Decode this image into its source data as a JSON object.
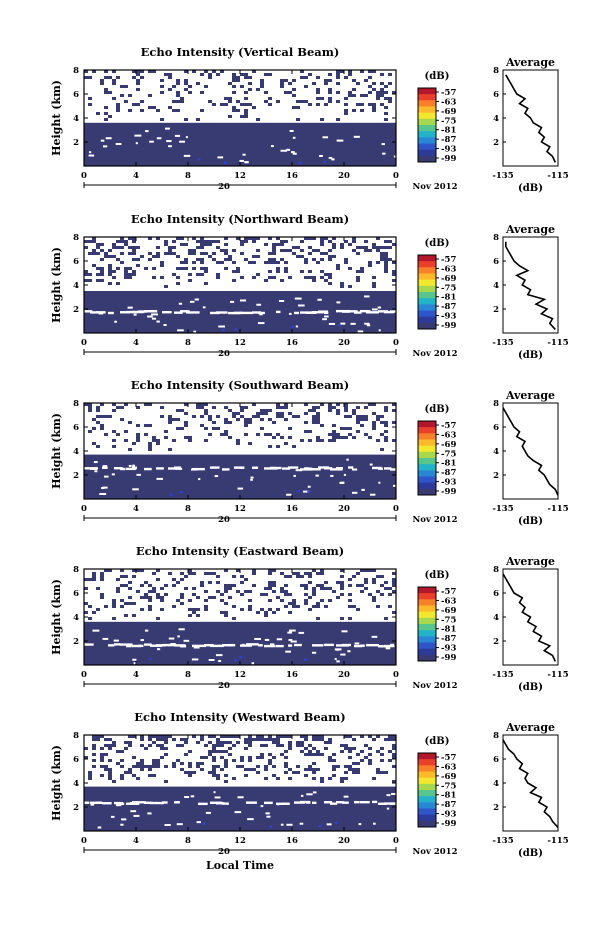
{
  "figure": {
    "xlabel": "Local Time",
    "date_label": "Nov 2012",
    "day_label": "20",
    "colorbar": {
      "unit": "(dB)",
      "ticks": [
        "-57",
        "-63",
        "-69",
        "-75",
        "-81",
        "-87",
        "-93",
        "-99"
      ],
      "colors": [
        "#b2182b",
        "#e8412b",
        "#f7812b",
        "#fbb92b",
        "#f2e830",
        "#a6d84f",
        "#57c58c",
        "#23b3c8",
        "#2a87d6",
        "#2f56c8",
        "#2e3a9a",
        "#383a72"
      ]
    },
    "avg_title": "Average",
    "avg_xlabel": "(dB)"
  },
  "chart_data": [
    {
      "type": "heatmap",
      "title": "Echo Intensity (Vertical Beam)",
      "xlabel": "",
      "ylabel": "Height (km)",
      "xlim": [
        0,
        24
      ],
      "ylim": [
        0,
        8
      ],
      "xticks": [
        "0",
        "4",
        "8",
        "12",
        "16",
        "20",
        "0"
      ],
      "yticks": [
        "2",
        "4",
        "6",
        "8"
      ],
      "clim": [
        -99,
        -57
      ],
      "dense_layer_top_km": 3.6,
      "gaps_km": [],
      "upper_echo_fraction": 0.25,
      "average_profile": {
        "xlim": [
          -135,
          -115
        ],
        "xticks": [
          "-135",
          "-115"
        ],
        "yticks": [
          "2",
          "4",
          "6",
          "8"
        ],
        "heights_km": [
          0.3,
          0.8,
          1.2,
          1.6,
          2.0,
          2.4,
          2.8,
          3.2,
          3.6,
          4.0,
          4.4,
          4.8,
          5.2,
          5.6,
          6.0,
          6.4,
          6.8,
          7.2,
          7.6
        ],
        "values_db": [
          -116,
          -117,
          -119,
          -118,
          -121,
          -120,
          -122,
          -121,
          -124,
          -125,
          -127,
          -126,
          -129,
          -127,
          -130,
          -131,
          -132,
          -133,
          -134
        ]
      }
    },
    {
      "type": "heatmap",
      "title": "Echo Intensity (Northward Beam)",
      "xlabel": "",
      "ylabel": "Height (km)",
      "xlim": [
        0,
        24
      ],
      "ylim": [
        0,
        8
      ],
      "xticks": [
        "0",
        "4",
        "8",
        "12",
        "16",
        "20",
        "0"
      ],
      "yticks": [
        "2",
        "4",
        "6",
        "8"
      ],
      "clim": [
        -99,
        -57
      ],
      "dense_layer_top_km": 3.5,
      "gaps_km": [
        1.8
      ],
      "upper_echo_fraction": 0.35,
      "average_profile": {
        "xlim": [
          -135,
          -115
        ],
        "xticks": [
          "-135",
          "-115"
        ],
        "yticks": [
          "2",
          "4",
          "6",
          "8"
        ],
        "heights_km": [
          0.3,
          0.8,
          1.2,
          1.6,
          2.0,
          2.4,
          2.8,
          3.2,
          3.6,
          4.0,
          4.4,
          4.8,
          5.2,
          5.6,
          6.0,
          6.4,
          6.8,
          7.2,
          7.6
        ],
        "values_db": [
          -116,
          -118,
          -117,
          -121,
          -119,
          -123,
          -120,
          -126,
          -125,
          -128,
          -127,
          -130,
          -126,
          -129,
          -131,
          -132,
          -133,
          -134,
          -134
        ]
      }
    },
    {
      "type": "heatmap",
      "title": "Echo Intensity (Southward Beam)",
      "xlabel": "",
      "ylabel": "Height (km)",
      "xlim": [
        0,
        24
      ],
      "ylim": [
        0,
        8
      ],
      "xticks": [
        "0",
        "4",
        "8",
        "12",
        "16",
        "20",
        "0"
      ],
      "yticks": [
        "2",
        "4",
        "6",
        "8"
      ],
      "clim": [
        -99,
        -57
      ],
      "dense_layer_top_km": 3.7,
      "gaps_km": [
        2.6
      ],
      "upper_echo_fraction": 0.3,
      "average_profile": {
        "xlim": [
          -135,
          -115
        ],
        "xticks": [
          "-135",
          "-115"
        ],
        "yticks": [
          "2",
          "4",
          "6",
          "8"
        ],
        "heights_km": [
          0.3,
          0.8,
          1.2,
          1.6,
          2.0,
          2.4,
          2.8,
          3.2,
          3.6,
          4.0,
          4.4,
          4.8,
          5.2,
          5.6,
          6.0,
          6.4,
          6.8,
          7.2,
          7.6
        ],
        "values_db": [
          -115,
          -116,
          -118,
          -119,
          -120,
          -122,
          -121,
          -124,
          -126,
          -127,
          -128,
          -127,
          -130,
          -129,
          -131,
          -132,
          -133,
          -134,
          -135
        ]
      }
    },
    {
      "type": "heatmap",
      "title": "Echo Intensity (Eastward Beam)",
      "xlabel": "",
      "ylabel": "Height (km)",
      "xlim": [
        0,
        24
      ],
      "ylim": [
        0,
        8
      ],
      "xticks": [
        "0",
        "4",
        "8",
        "12",
        "16",
        "20",
        "0"
      ],
      "yticks": [
        "2",
        "4",
        "6",
        "8"
      ],
      "clim": [
        -99,
        -57
      ],
      "dense_layer_top_km": 3.6,
      "gaps_km": [
        1.7
      ],
      "upper_echo_fraction": 0.3,
      "average_profile": {
        "xlim": [
          -135,
          -115
        ],
        "xticks": [
          "-135",
          "-115"
        ],
        "yticks": [
          "2",
          "4",
          "6",
          "8"
        ],
        "heights_km": [
          0.3,
          0.8,
          1.2,
          1.6,
          2.0,
          2.4,
          2.8,
          3.2,
          3.6,
          4.0,
          4.4,
          4.8,
          5.2,
          5.6,
          6.0,
          6.4,
          6.8,
          7.2,
          7.6
        ],
        "values_db": [
          -116,
          -117,
          -120,
          -118,
          -122,
          -121,
          -124,
          -123,
          -126,
          -125,
          -128,
          -127,
          -129,
          -128,
          -131,
          -132,
          -133,
          -134,
          -135
        ]
      }
    },
    {
      "type": "heatmap",
      "title": "Echo Intensity (Westward Beam)",
      "xlabel": "Local Time",
      "ylabel": "Height (km)",
      "xlim": [
        0,
        24
      ],
      "ylim": [
        0,
        8
      ],
      "xticks": [
        "0",
        "4",
        "8",
        "12",
        "16",
        "20",
        "0"
      ],
      "yticks": [
        "2",
        "4",
        "6",
        "8"
      ],
      "clim": [
        -99,
        -57
      ],
      "dense_layer_top_km": 3.7,
      "gaps_km": [
        2.4
      ],
      "upper_echo_fraction": 0.4,
      "average_profile": {
        "xlim": [
          -135,
          -115
        ],
        "xticks": [
          "-135",
          "-115"
        ],
        "yticks": [
          "2",
          "4",
          "6",
          "8"
        ],
        "heights_km": [
          0.3,
          0.8,
          1.2,
          1.6,
          2.0,
          2.4,
          2.8,
          3.2,
          3.6,
          4.0,
          4.4,
          4.8,
          5.2,
          5.6,
          6.0,
          6.4,
          6.8,
          7.2,
          7.6
        ],
        "values_db": [
          -115,
          -117,
          -118,
          -120,
          -119,
          -122,
          -121,
          -125,
          -123,
          -126,
          -127,
          -126,
          -129,
          -128,
          -130,
          -131,
          -133,
          -134,
          -135
        ]
      }
    }
  ]
}
